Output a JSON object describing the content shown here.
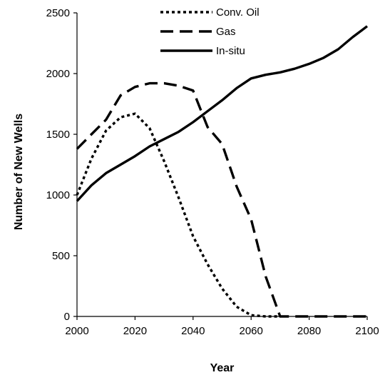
{
  "chart_data": {
    "type": "line",
    "title": "",
    "xlabel": "Year",
    "ylabel": "Number of New Wells",
    "xlim": [
      2000,
      2100
    ],
    "ylim": [
      0,
      2500
    ],
    "x_ticks": [
      2000,
      2020,
      2040,
      2060,
      2080,
      2100
    ],
    "y_ticks": [
      0,
      500,
      1000,
      1500,
      2000,
      2500
    ],
    "grid": false,
    "legend_position": "top-center",
    "series": [
      {
        "name": "Conv. Oil",
        "style": "dotted",
        "color": "#000000",
        "x": [
          2000,
          2005,
          2010,
          2015,
          2020,
          2025,
          2030,
          2035,
          2040,
          2045,
          2050,
          2055,
          2060,
          2065,
          2070
        ],
        "y": [
          1000,
          1300,
          1530,
          1640,
          1670,
          1550,
          1280,
          980,
          660,
          430,
          230,
          80,
          10,
          0,
          0
        ]
      },
      {
        "name": "Gas",
        "style": "dashed",
        "color": "#000000",
        "x": [
          2000,
          2005,
          2010,
          2015,
          2020,
          2025,
          2030,
          2035,
          2040,
          2045,
          2050,
          2055,
          2060,
          2065,
          2070,
          2075,
          2080,
          2085,
          2090,
          2095,
          2100
        ],
        "y": [
          1380,
          1500,
          1620,
          1820,
          1890,
          1920,
          1920,
          1900,
          1860,
          1560,
          1420,
          1070,
          800,
          330,
          0,
          0,
          0,
          0,
          0,
          0,
          0
        ]
      },
      {
        "name": "In-situ",
        "style": "solid",
        "color": "#000000",
        "x": [
          2000,
          2005,
          2010,
          2015,
          2020,
          2025,
          2030,
          2035,
          2040,
          2045,
          2050,
          2055,
          2060,
          2065,
          2070,
          2075,
          2080,
          2085,
          2090,
          2095,
          2100
        ],
        "y": [
          950,
          1080,
          1180,
          1250,
          1320,
          1400,
          1460,
          1520,
          1600,
          1690,
          1780,
          1880,
          1960,
          1990,
          2010,
          2040,
          2080,
          2130,
          2200,
          2300,
          2390
        ]
      }
    ]
  }
}
